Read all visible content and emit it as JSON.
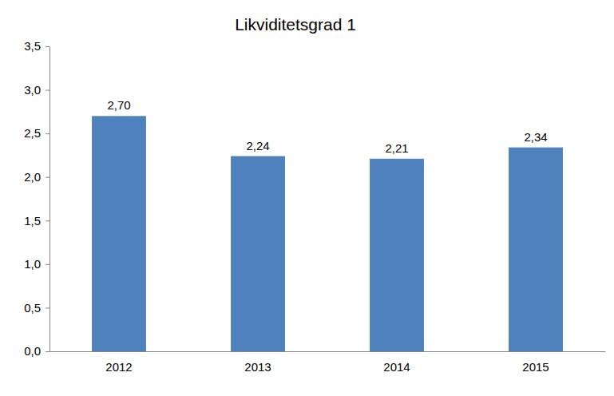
{
  "chart_data": {
    "type": "bar",
    "title": "Likviditetsgrad 1",
    "categories": [
      "2012",
      "2013",
      "2014",
      "2015"
    ],
    "values": [
      2.7,
      2.24,
      2.21,
      2.34
    ],
    "value_labels": [
      "2,70",
      "2,24",
      "2,21",
      "2,34"
    ],
    "data_labels": true,
    "color": "#4f81bd",
    "ylim": [
      0,
      3.5
    ],
    "yticks": [
      {
        "value": 0,
        "label": "0,0"
      },
      {
        "value": 0.5,
        "label": "0,5"
      },
      {
        "value": 1,
        "label": "1,0"
      },
      {
        "value": 1.5,
        "label": "1,5"
      },
      {
        "value": 2,
        "label": "2,0"
      },
      {
        "value": 2.5,
        "label": "2,5"
      },
      {
        "value": 3,
        "label": "3,0"
      },
      {
        "value": 3.5,
        "label": "3,5"
      }
    ],
    "grid": false
  }
}
